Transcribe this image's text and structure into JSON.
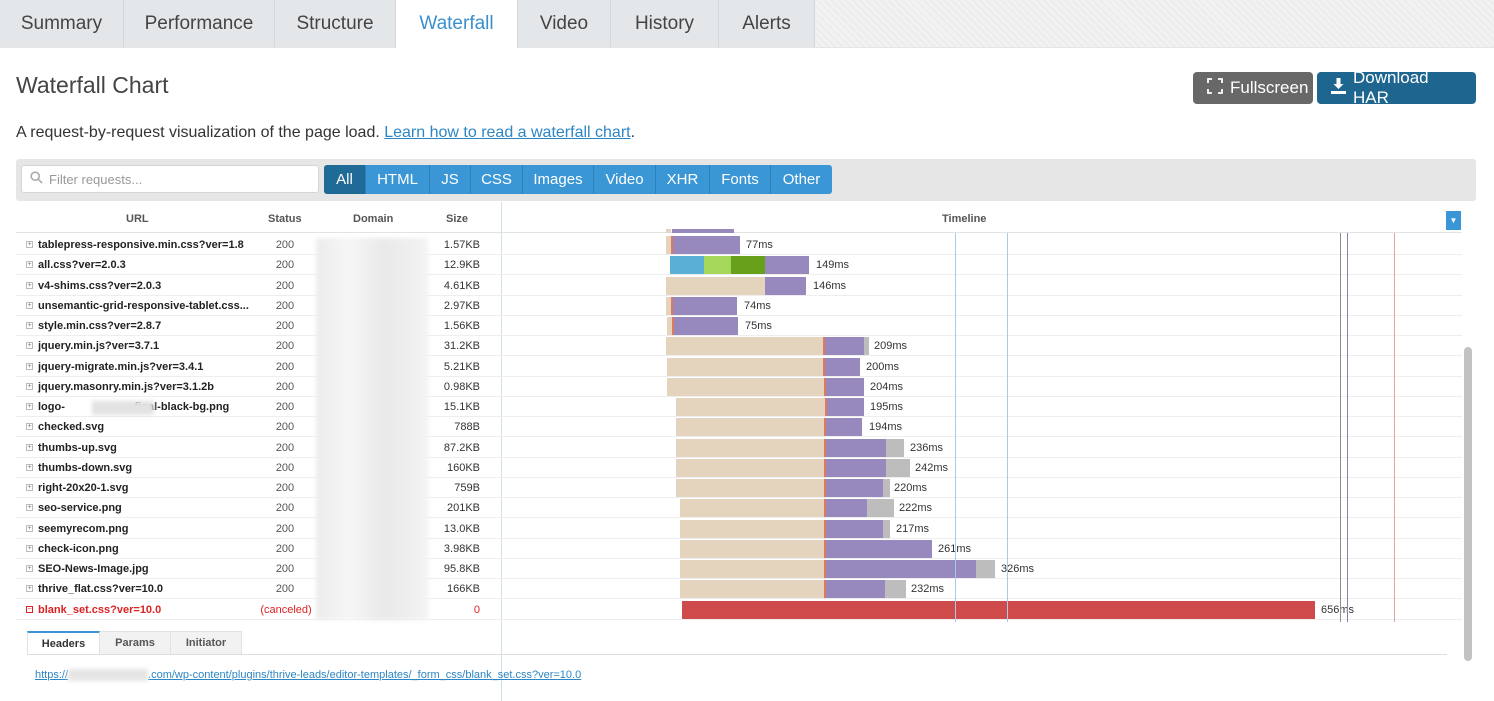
{
  "tabs": [
    {
      "label": "Summary",
      "active": false
    },
    {
      "label": "Performance",
      "active": false
    },
    {
      "label": "Structure",
      "active": false
    },
    {
      "label": "Waterfall",
      "active": true
    },
    {
      "label": "Video",
      "active": false
    },
    {
      "label": "History",
      "active": false
    },
    {
      "label": "Alerts",
      "active": false
    }
  ],
  "header": {
    "title": "Waterfall Chart",
    "fullscreen_label": "Fullscreen",
    "download_label": "Download HAR",
    "description": "A request-by-request visualization of the page load. ",
    "learn_link": "Learn how to read a waterfall chart",
    "description_end": "."
  },
  "filter": {
    "placeholder": "Filter requests...",
    "types": [
      "All",
      "HTML",
      "JS",
      "CSS",
      "Images",
      "Video",
      "XHR",
      "Fonts",
      "Other"
    ],
    "active_type": "All"
  },
  "table": {
    "columns": {
      "url": "URL",
      "status": "Status",
      "domain": "Domain",
      "size": "Size",
      "timeline": "Timeline"
    },
    "rows": [
      {
        "url": "tablepress-responsive.min.css?ver=1.8",
        "status": "200",
        "size": "1.57KB",
        "duration": "77ms"
      },
      {
        "url": "all.css?ver=2.0.3",
        "status": "200",
        "size": "12.9KB",
        "duration": "149ms"
      },
      {
        "url": "v4-shims.css?ver=2.0.3",
        "status": "200",
        "size": "4.61KB",
        "duration": "146ms"
      },
      {
        "url": "unsemantic-grid-responsive-tablet.css...",
        "status": "200",
        "size": "2.97KB",
        "duration": "74ms"
      },
      {
        "url": "style.min.css?ver=2.8.7",
        "status": "200",
        "size": "1.56KB",
        "duration": "75ms"
      },
      {
        "url": "jquery.min.js?ver=3.7.1",
        "status": "200",
        "size": "31.2KB",
        "duration": "209ms"
      },
      {
        "url": "jquery-migrate.min.js?ver=3.4.1",
        "status": "200",
        "size": "5.21KB",
        "duration": "200ms"
      },
      {
        "url": "jquery.masonry.min.js?ver=3.1.2b",
        "status": "200",
        "size": "0.98KB",
        "duration": "204ms"
      },
      {
        "url": "logo-",
        "url_suffix": "-final-black-bg.png",
        "status": "200",
        "size": "15.1KB",
        "duration": "195ms"
      },
      {
        "url": "checked.svg",
        "status": "200",
        "size": "788B",
        "duration": "194ms"
      },
      {
        "url": "thumbs-up.svg",
        "status": "200",
        "size": "87.2KB",
        "duration": "236ms"
      },
      {
        "url": "thumbs-down.svg",
        "status": "200",
        "size": "160KB",
        "duration": "242ms"
      },
      {
        "url": "right-20x20-1.svg",
        "status": "200",
        "size": "759B",
        "duration": "220ms"
      },
      {
        "url": "seo-service.png",
        "status": "200",
        "size": "201KB",
        "duration": "222ms"
      },
      {
        "url": "seemyrecom.png",
        "status": "200",
        "size": "13.0KB",
        "duration": "217ms"
      },
      {
        "url": "check-icon.png",
        "status": "200",
        "size": "3.98KB",
        "duration": "261ms"
      },
      {
        "url": "SEO-News-Image.jpg",
        "status": "200",
        "size": "95.8KB",
        "duration": "326ms"
      },
      {
        "url": "thrive_flat.css?ver=10.0",
        "status": "200",
        "size": "166KB",
        "duration": "232ms"
      },
      {
        "url": "blank_set.css?ver=10.0",
        "status": "(canceled)",
        "size": "0",
        "duration": "656ms",
        "canceled": true
      }
    ]
  },
  "detail": {
    "tabs": [
      "Headers",
      "Params",
      "Initiator"
    ],
    "active_tab": "Headers",
    "url_prefix": "https://",
    "url_suffix": ".com/wp-content/plugins/thrive-leads/editor-templates/_form_css/blank_set.css?ver=10.0"
  },
  "colors": {
    "accent": "#3b96d6",
    "active_type": "#1f6a96",
    "wait": "#e4d4bd",
    "dns": "#5aafd6",
    "connect": "#a5d85a",
    "ssl": "#67a11b",
    "receive": "#9789bd",
    "blocked": "#bdbdbd",
    "canceled": "#cf4b4b"
  }
}
